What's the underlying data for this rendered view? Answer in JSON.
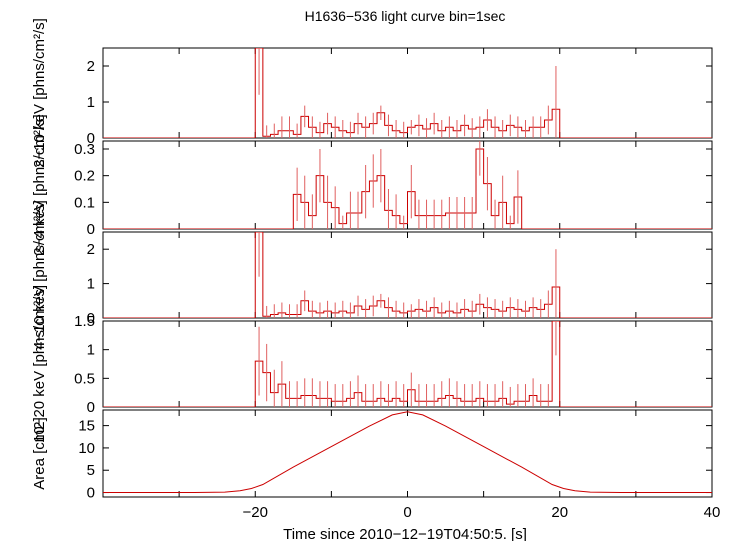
{
  "title": "H1636−536 light curve bin=1sec",
  "xlabel": "Time since 2010−12−19T04:50:5. [s]",
  "xlim": [
    -40,
    40
  ],
  "xticks": [
    -20,
    0,
    20,
    40
  ],
  "xtick_labels": [
    "−20",
    "0",
    "20",
    "40"
  ],
  "chart_data": [
    {
      "type": "line",
      "name": "panel-2-10kev",
      "ylabel": "2−10 keV [phns/cm²/s]",
      "ylim": [
        0,
        2.5
      ],
      "yticks": [
        0,
        1,
        2
      ],
      "ytick_labels": [
        "0",
        "1",
        "2"
      ],
      "bins": {
        "x": [
          -20,
          -19,
          -18,
          -17,
          -16,
          -15,
          -14,
          -13,
          -12,
          -11,
          -10,
          -9,
          -8,
          -7,
          -6,
          -5,
          -4,
          -3,
          -2,
          -1,
          0,
          1,
          2,
          3,
          4,
          5,
          6,
          7,
          8,
          9,
          10,
          11,
          12,
          13,
          14,
          15,
          16,
          17,
          18,
          19
        ],
        "y": [
          2.5,
          0.05,
          0.1,
          0.2,
          0.2,
          0.1,
          0.6,
          0.3,
          0.15,
          0.4,
          0.3,
          0.2,
          0.15,
          0.4,
          0.3,
          0.4,
          0.7,
          0.35,
          0.2,
          0.15,
          0.3,
          0.35,
          0.25,
          0.4,
          0.2,
          0.3,
          0.2,
          0.35,
          0.25,
          0.3,
          0.5,
          0.3,
          0.2,
          0.35,
          0.3,
          0.2,
          0.3,
          0.3,
          0.5,
          0.8
        ],
        "err": [
          1.3,
          0.3,
          0.3,
          0.4,
          0.4,
          0.3,
          0.3,
          0.3,
          0.3,
          0.3,
          0.3,
          0.3,
          0.3,
          0.3,
          0.3,
          0.3,
          0.2,
          0.3,
          0.3,
          0.3,
          0.2,
          0.3,
          0.3,
          0.3,
          0.3,
          0.3,
          0.3,
          0.3,
          0.3,
          0.3,
          0.3,
          0.3,
          0.3,
          0.3,
          0.3,
          0.3,
          0.3,
          0.3,
          0.4,
          1.2
        ]
      }
    },
    {
      "type": "line",
      "name": "panel-2-4kev",
      "ylabel": "2−4 keV [phns/cm²/s]",
      "ylim": [
        0,
        0.33
      ],
      "yticks": [
        0,
        0.1,
        0.2,
        0.3
      ],
      "ytick_labels": [
        "0",
        "0.1",
        "0.2",
        "0.3"
      ],
      "bins": {
        "x": [
          -15,
          -14,
          -13,
          -12,
          -11,
          -10,
          -9,
          -8,
          -7,
          -6,
          -5,
          -4,
          -3,
          -2,
          -1,
          0,
          1,
          2,
          3,
          4,
          5,
          6,
          7,
          8,
          9,
          10,
          11,
          12,
          13,
          14
        ],
        "y": [
          0.13,
          0.1,
          0.05,
          0.2,
          0.1,
          0.08,
          0.02,
          0.06,
          0.06,
          0.14,
          0.18,
          0.2,
          0.07,
          0.05,
          0.02,
          0.14,
          0.05,
          0.05,
          0.05,
          0.05,
          0.06,
          0.06,
          0.06,
          0.06,
          0.3,
          0.17,
          0.05,
          0.1,
          0.02,
          0.12
        ],
        "err": [
          0.1,
          0.1,
          0.08,
          0.1,
          0.1,
          0.08,
          0.03,
          0.08,
          0.08,
          0.1,
          0.1,
          0.1,
          0.08,
          0.08,
          0.03,
          0.1,
          0.06,
          0.06,
          0.06,
          0.06,
          0.06,
          0.06,
          0.06,
          0.06,
          0.1,
          0.1,
          0.06,
          0.1,
          0.03,
          0.1
        ]
      }
    },
    {
      "type": "line",
      "name": "panel-4-10kev",
      "ylabel": "4−10 keV [phns/cm²/s]",
      "ylim": [
        0,
        2.5
      ],
      "yticks": [
        0,
        1,
        2
      ],
      "ytick_labels": [
        "0",
        "1",
        "2"
      ],
      "bins": {
        "x": [
          -20,
          -19,
          -18,
          -17,
          -16,
          -15,
          -14,
          -13,
          -12,
          -11,
          -10,
          -9,
          -8,
          -7,
          -6,
          -5,
          -4,
          -3,
          -2,
          -1,
          0,
          1,
          2,
          3,
          4,
          5,
          6,
          7,
          8,
          9,
          10,
          11,
          12,
          13,
          14,
          15,
          16,
          17,
          18,
          19
        ],
        "y": [
          2.5,
          0.05,
          0.1,
          0.15,
          0.1,
          0.1,
          0.5,
          0.2,
          0.15,
          0.2,
          0.15,
          0.2,
          0.15,
          0.35,
          0.25,
          0.35,
          0.5,
          0.3,
          0.2,
          0.15,
          0.2,
          0.25,
          0.2,
          0.3,
          0.15,
          0.2,
          0.15,
          0.25,
          0.2,
          0.4,
          0.3,
          0.25,
          0.2,
          0.3,
          0.25,
          0.2,
          0.3,
          0.25,
          0.4,
          0.9
        ],
        "err": [
          1.3,
          0.3,
          0.3,
          0.3,
          0.3,
          0.3,
          0.3,
          0.3,
          0.3,
          0.3,
          0.3,
          0.3,
          0.3,
          0.3,
          0.3,
          0.3,
          0.2,
          0.3,
          0.3,
          0.3,
          0.2,
          0.3,
          0.3,
          0.3,
          0.3,
          0.3,
          0.3,
          0.3,
          0.3,
          0.3,
          0.3,
          0.3,
          0.3,
          0.3,
          0.3,
          0.3,
          0.3,
          0.3,
          0.4,
          1.1
        ]
      }
    },
    {
      "type": "line",
      "name": "panel-10-20kev",
      "ylabel": "10−20 keV [phns/cm²/s]",
      "ylim": [
        0,
        1.5
      ],
      "yticks": [
        0,
        0.5,
        1,
        1.5
      ],
      "ytick_labels": [
        "0",
        "0.5",
        "1",
        "1.5"
      ],
      "bins": {
        "x": [
          -20,
          -19,
          -18,
          -17,
          -16,
          -15,
          -14,
          -13,
          -12,
          -11,
          -10,
          -9,
          -8,
          -7,
          -6,
          -5,
          -4,
          -3,
          -2,
          -1,
          0,
          1,
          2,
          3,
          4,
          5,
          6,
          7,
          8,
          9,
          10,
          11,
          12,
          13,
          14,
          15,
          16,
          17,
          18,
          19
        ],
        "y": [
          0.8,
          0.6,
          0.25,
          0.4,
          0.15,
          0.15,
          0.2,
          0.2,
          0.15,
          0.15,
          0.1,
          0.1,
          0.15,
          0.25,
          0.1,
          0.1,
          0.15,
          0.1,
          0.15,
          0.1,
          0.3,
          0.1,
          0.1,
          0.1,
          0.15,
          0.2,
          0.15,
          0.1,
          0.1,
          0.15,
          0.1,
          0.1,
          0.15,
          0.05,
          0.1,
          0.1,
          0.2,
          0.1,
          0.1,
          1.5
        ],
        "err": [
          0.6,
          0.5,
          0.4,
          0.4,
          0.3,
          0.3,
          0.3,
          0.3,
          0.3,
          0.3,
          0.3,
          0.3,
          0.3,
          0.3,
          0.3,
          0.3,
          0.3,
          0.3,
          0.3,
          0.3,
          0.3,
          0.3,
          0.3,
          0.3,
          0.3,
          0.3,
          0.3,
          0.3,
          0.3,
          0.3,
          0.3,
          0.3,
          0.3,
          0.3,
          0.3,
          0.3,
          0.3,
          0.3,
          0.3,
          0.6
        ]
      }
    },
    {
      "type": "line",
      "name": "panel-area",
      "ylabel": "Area [cm2]",
      "ylim": [
        -1,
        18.5
      ],
      "yticks": [
        0,
        5,
        10,
        15
      ],
      "ytick_labels": [
        "0",
        "5",
        "10",
        "15"
      ],
      "series": [
        {
          "x": [
            -40,
            -28,
            -24,
            -22,
            -20.5,
            -19,
            -15,
            -10,
            -5,
            -2,
            0,
            2,
            5,
            10,
            15,
            19,
            20.5,
            22,
            24,
            28,
            40
          ],
          "y": [
            0,
            0,
            0.1,
            0.4,
            0.9,
            1.8,
            5.7,
            10.3,
            14.9,
            17.4,
            18.1,
            17.4,
            14.9,
            10.3,
            5.7,
            1.8,
            0.9,
            0.4,
            0.1,
            0,
            0
          ]
        }
      ]
    }
  ]
}
